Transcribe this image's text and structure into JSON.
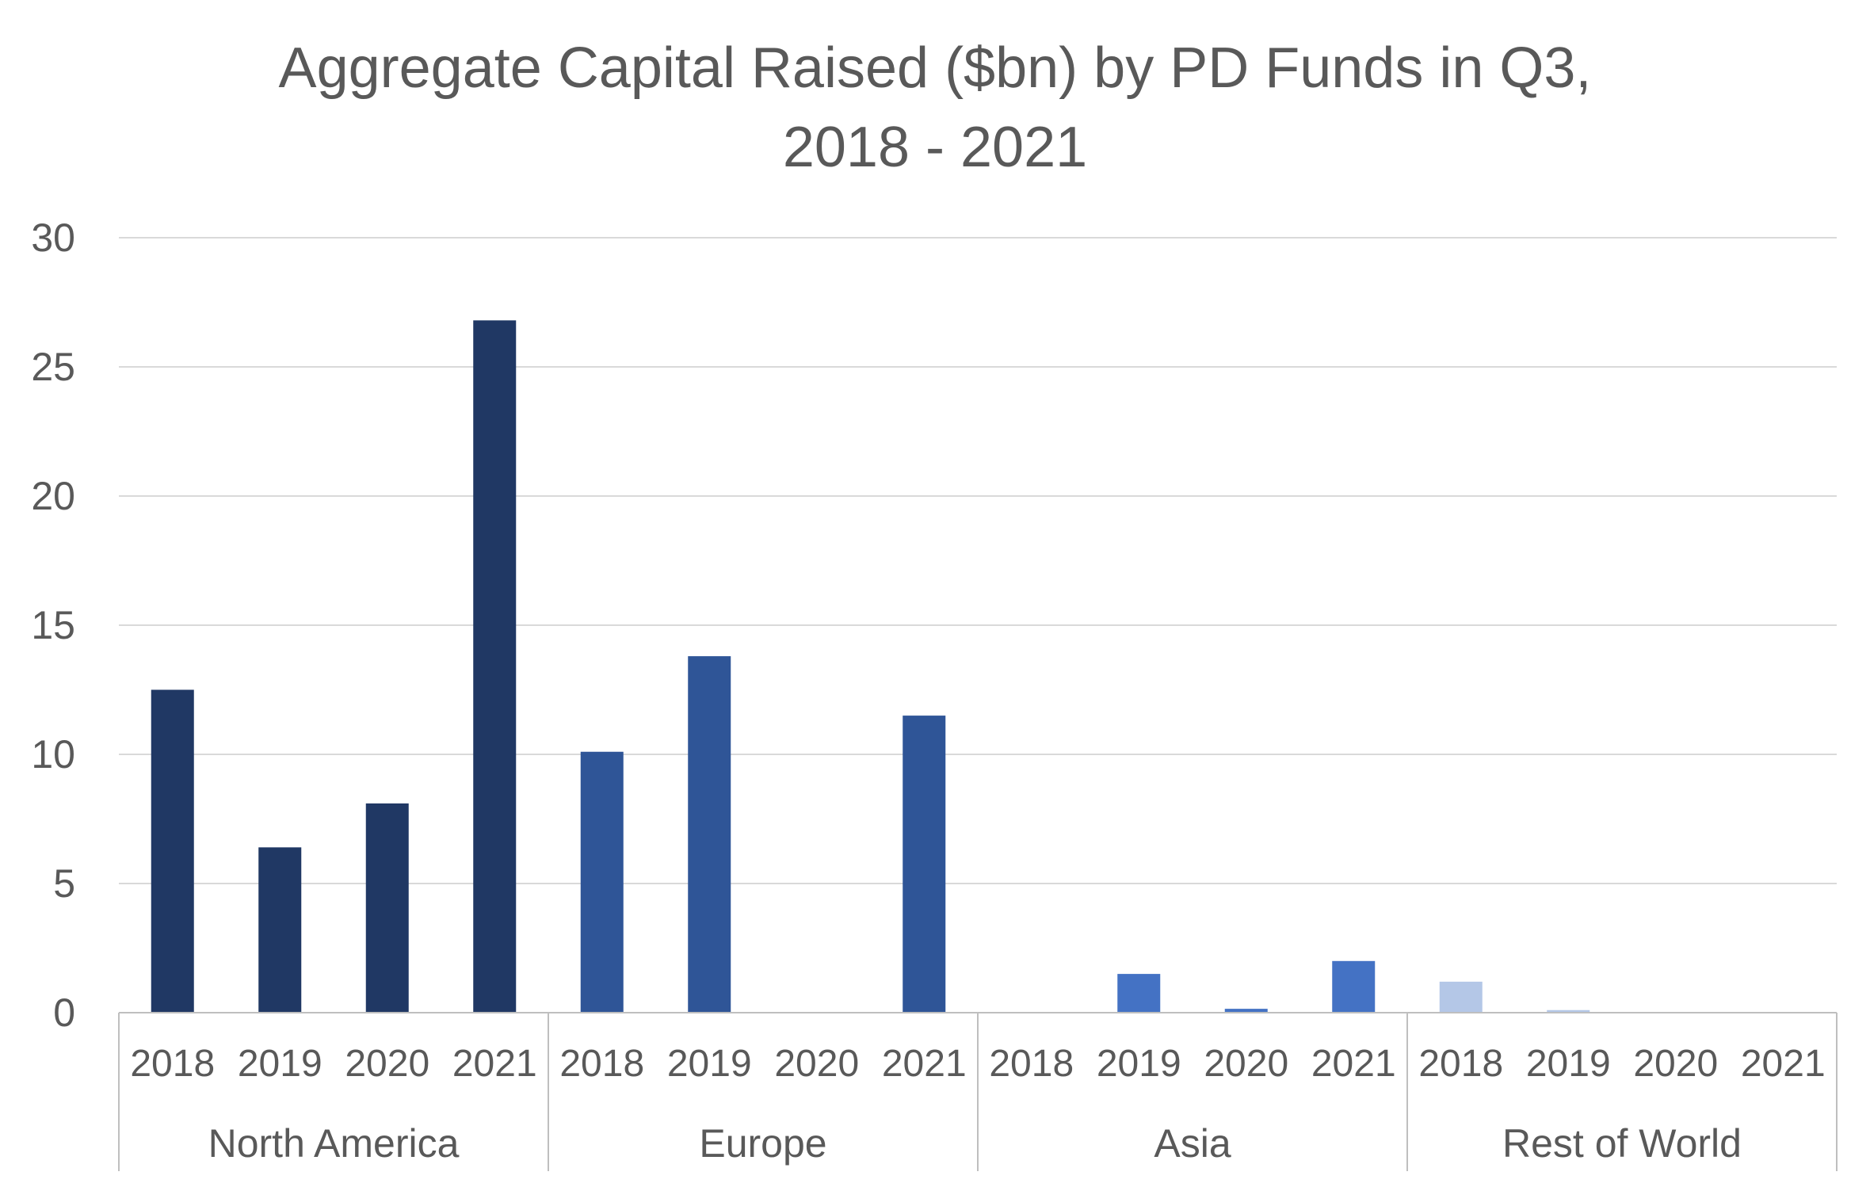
{
  "chart_data": {
    "type": "bar",
    "title_lines": [
      "Aggregate Capital Raised ($bn) by PD Funds in Q3,",
      "2018 - 2021"
    ],
    "xlabel": "",
    "ylabel": "",
    "ylim": [
      0,
      30
    ],
    "yticks": [
      0,
      5,
      10,
      15,
      20,
      25,
      30
    ],
    "grid": true,
    "legend": "none",
    "groups": [
      {
        "name": "North America",
        "color": "#203864",
        "categories": [
          "2018",
          "2019",
          "2020",
          "2021"
        ],
        "values": [
          12.5,
          6.4,
          8.1,
          26.8
        ]
      },
      {
        "name": "Europe",
        "color": "#2F5597",
        "categories": [
          "2018",
          "2019",
          "2020",
          "2021"
        ],
        "values": [
          10.1,
          13.8,
          0,
          11.5
        ]
      },
      {
        "name": "Asia",
        "color": "#4472C4",
        "categories": [
          "2018",
          "2019",
          "2020",
          "2021"
        ],
        "values": [
          0,
          1.5,
          0.15,
          2.0
        ]
      },
      {
        "name": "Rest of World",
        "color": "#B4C7E7",
        "categories": [
          "2018",
          "2019",
          "2020",
          "2021"
        ],
        "values": [
          1.2,
          0.1,
          0,
          0
        ]
      }
    ]
  }
}
